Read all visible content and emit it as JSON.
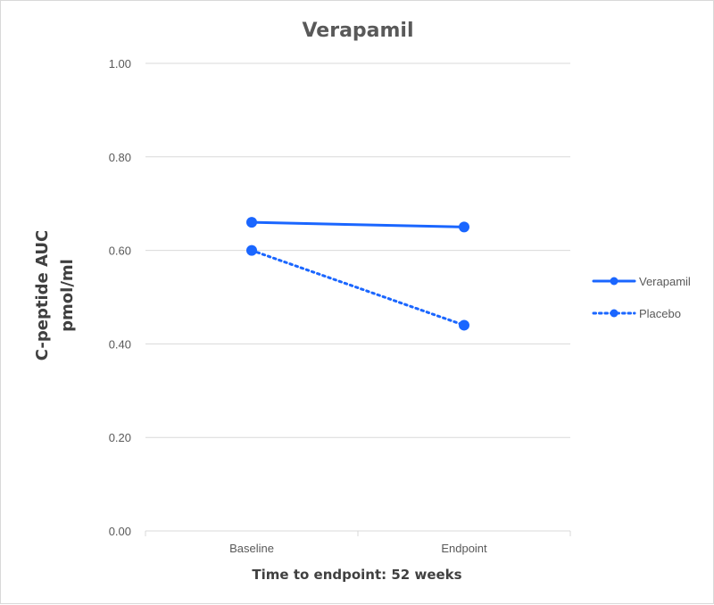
{
  "chart_data": {
    "type": "line",
    "title": "Verapamil",
    "xlabel": "Time to endpoint: 52 weeks",
    "ylabel_line1": "C-peptide AUC",
    "ylabel_line2": "pmol/ml",
    "categories": [
      "Baseline",
      "Endpoint"
    ],
    "ylim": [
      0,
      1
    ],
    "yticks": [
      "0.00",
      "0.20",
      "0.40",
      "0.60",
      "0.80",
      "1.00"
    ],
    "grid": true,
    "legend_position": "right",
    "series": [
      {
        "name": "Verapamil",
        "values": [
          0.66,
          0.65
        ],
        "color": "#1a66ff",
        "dash": "solid"
      },
      {
        "name": "Placebo",
        "values": [
          0.6,
          0.44
        ],
        "color": "#1a66ff",
        "dash": "dotted"
      }
    ]
  }
}
